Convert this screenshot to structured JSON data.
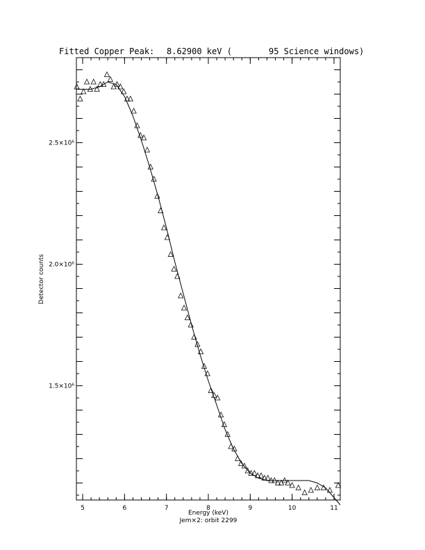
{
  "header": {
    "title_left": "Fitted Copper Peak:",
    "title_value": "8.62900 keV (",
    "title_right": "95 Science windows)"
  },
  "footer": {
    "subtitle": "Jem×2: orbit 2299"
  },
  "chart_data": {
    "type": "scatter",
    "title": "Fitted Copper Peak:      8.62900 keV (          95 Science windows)",
    "xlabel": "Energy (keV)",
    "ylabel": "Detector counts",
    "xlim": [
      4.85,
      11.15
    ],
    "ylim": [
      1030000,
      2850000
    ],
    "x_ticks": [
      "5",
      "6",
      "7",
      "8",
      "9",
      "10",
      "11"
    ],
    "x_tick_values": [
      5,
      6,
      7,
      8,
      9,
      10,
      11
    ],
    "y_ticks": [
      "1.5×10⁶",
      "2.0×10⁶",
      "2.5×10⁶"
    ],
    "y_tick_values": [
      1500000,
      2000000,
      2500000
    ],
    "series": [
      {
        "marker": "triangle",
        "x": [
          4.86,
          4.94,
          5.02,
          5.1,
          5.18,
          5.26,
          5.34,
          5.42,
          5.5,
          5.58,
          5.66,
          5.74,
          5.82,
          5.9,
          5.98,
          6.06,
          6.14,
          6.22,
          6.3,
          6.38,
          6.46,
          6.54,
          6.62,
          6.7,
          6.78,
          6.86,
          6.94,
          7.02,
          7.1,
          7.18,
          7.26,
          7.34,
          7.42,
          7.5,
          7.58,
          7.66,
          7.74,
          7.82,
          7.9,
          7.98,
          8.06,
          8.14,
          8.22,
          8.3,
          8.38,
          8.46,
          8.54,
          8.62,
          8.7,
          8.78,
          8.86,
          8.94,
          9.02,
          9.1,
          9.18,
          9.26,
          9.34,
          9.42,
          9.5,
          9.58,
          9.66,
          9.74,
          9.82,
          9.9,
          10.0,
          10.15,
          10.3,
          10.45,
          10.6,
          10.75,
          10.9,
          11.1
        ],
        "y": [
          2730000,
          2680000,
          2710000,
          2750000,
          2720000,
          2750000,
          2720000,
          2740000,
          2740000,
          2780000,
          2760000,
          2730000,
          2740000,
          2730000,
          2710000,
          2680000,
          2680000,
          2630000,
          2570000,
          2530000,
          2520000,
          2470000,
          2400000,
          2350000,
          2280000,
          2220000,
          2150000,
          2110000,
          2040000,
          1980000,
          1950000,
          1870000,
          1820000,
          1780000,
          1750000,
          1700000,
          1670000,
          1640000,
          1580000,
          1550000,
          1480000,
          1460000,
          1450000,
          1380000,
          1340000,
          1300000,
          1250000,
          1240000,
          1200000,
          1180000,
          1170000,
          1150000,
          1140000,
          1140000,
          1130000,
          1130000,
          1120000,
          1120000,
          1110000,
          1110000,
          1100000,
          1100000,
          1110000,
          1100000,
          1090000,
          1080000,
          1060000,
          1070000,
          1080000,
          1080000,
          1070000,
          1090000
        ]
      },
      {
        "style": "line",
        "x": [
          4.85,
          5.0,
          5.2,
          5.4,
          5.6,
          5.8,
          6.0,
          6.2,
          6.4,
          6.6,
          6.8,
          7.0,
          7.2,
          7.4,
          7.6,
          7.8,
          8.0,
          8.2,
          8.4,
          8.6,
          8.8,
          9.0,
          9.2,
          9.4,
          9.6,
          9.8,
          10.0,
          10.2,
          10.4,
          10.6,
          10.8,
          11.0,
          11.15
        ],
        "y": [
          2720000,
          2720000,
          2720000,
          2730000,
          2750000,
          2740000,
          2690000,
          2610000,
          2510000,
          2400000,
          2280000,
          2150000,
          2010000,
          1880000,
          1750000,
          1630000,
          1520000,
          1420000,
          1320000,
          1240000,
          1180000,
          1140000,
          1120000,
          1110000,
          1110000,
          1110000,
          1110000,
          1110000,
          1110000,
          1100000,
          1080000,
          1040000,
          1010000
        ]
      }
    ]
  }
}
